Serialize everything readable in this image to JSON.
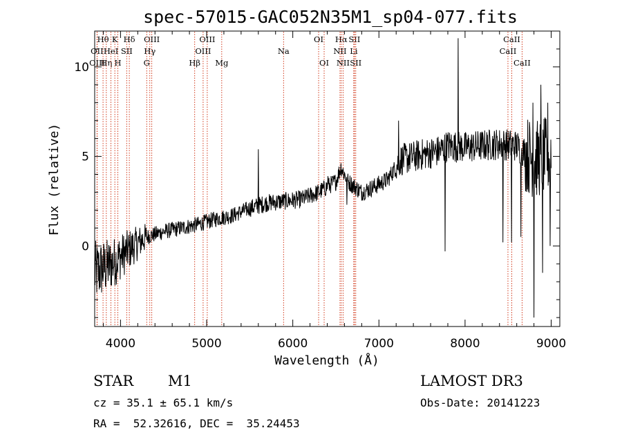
{
  "chart_data": {
    "type": "line",
    "title": "spec-57015-GAC052N35M1_sp04-077.fits",
    "xlabel": "Wavelength (Å)",
    "ylabel": "Flux (relative)",
    "xlim": [
      3700,
      9100
    ],
    "ylim": [
      -4.5,
      12
    ],
    "x_ticks": [
      4000,
      5000,
      6000,
      7000,
      8000,
      9000
    ],
    "x_tick_labels": [
      "4000",
      "5000",
      "6000",
      "7000",
      "8000",
      "9000"
    ],
    "y_ticks": [
      0,
      5,
      10
    ],
    "y_tick_labels": [
      "0",
      "5",
      "10"
    ],
    "spectrum_control_points": [
      [
        3700,
        -1.5
      ],
      [
        3900,
        -1.0
      ],
      [
        4100,
        -0.2
      ],
      [
        4300,
        0.5
      ],
      [
        4500,
        0.8
      ],
      [
        4700,
        1.0
      ],
      [
        4900,
        1.2
      ],
      [
        5100,
        1.5
      ],
      [
        5300,
        1.7
      ],
      [
        5500,
        2.1
      ],
      [
        5700,
        2.4
      ],
      [
        5900,
        2.5
      ],
      [
        6100,
        2.6
      ],
      [
        6300,
        3.0
      ],
      [
        6500,
        3.6
      ],
      [
        6560,
        4.4
      ],
      [
        6640,
        3.6
      ],
      [
        6800,
        3.0
      ],
      [
        6900,
        3.2
      ],
      [
        7100,
        3.7
      ],
      [
        7250,
        4.8
      ],
      [
        7500,
        5.1
      ],
      [
        7700,
        5.3
      ],
      [
        7800,
        5.6
      ],
      [
        8000,
        5.5
      ],
      [
        8200,
        5.6
      ],
      [
        8400,
        5.7
      ],
      [
        8600,
        5.6
      ],
      [
        8800,
        4.8
      ],
      [
        9000,
        5.1
      ]
    ],
    "spikes": [
      [
        5600,
        5.4
      ],
      [
        6410,
        3.9
      ],
      [
        6630,
        2.3
      ],
      [
        7230,
        7.0
      ],
      [
        7770,
        -0.3
      ],
      [
        7920,
        11.6
      ],
      [
        8440,
        0.2
      ],
      [
        8540,
        0.2
      ],
      [
        8650,
        0.5
      ],
      [
        8790,
        8.0
      ],
      [
        8800,
        -4.0
      ],
      [
        8880,
        9.0
      ],
      [
        8900,
        -1.5
      ],
      [
        8960,
        8.0
      ],
      [
        8990,
        0.0
      ]
    ],
    "spectral_lines": [
      {
        "name": "Hθ",
        "wavelength": 3797,
        "row": 1
      },
      {
        "name": "OII",
        "wavelength": 3727,
        "row": 2
      },
      {
        "name": "OIII",
        "wavelength": 3729,
        "row": 3
      },
      {
        "name": "K",
        "wavelength": 3934,
        "row": 1
      },
      {
        "name": "Hη",
        "wavelength": 3835,
        "row": 3
      },
      {
        "name": "H",
        "wavelength": 3969,
        "row": 3
      },
      {
        "name": "HeI",
        "wavelength": 3889,
        "row": 2
      },
      {
        "name": "SII",
        "wavelength": 4072,
        "row": 2
      },
      {
        "name": "Hδ",
        "wavelength": 4102,
        "row": 1
      },
      {
        "name": "OIII",
        "wavelength": 4363,
        "row": 1
      },
      {
        "name": "Hγ",
        "wavelength": 4340,
        "row": 2
      },
      {
        "name": "G",
        "wavelength": 4304,
        "row": 3
      },
      {
        "name": "OIII",
        "wavelength": 5007,
        "row": 1
      },
      {
        "name": "OIII",
        "wavelength": 4959,
        "row": 2
      },
      {
        "name": "Hβ",
        "wavelength": 4861,
        "row": 3
      },
      {
        "name": "Mg",
        "wavelength": 5175,
        "row": 3
      },
      {
        "name": "Na",
        "wavelength": 5893,
        "row": 2
      },
      {
        "name": "OI",
        "wavelength": 6300,
        "row": 1
      },
      {
        "name": "OI",
        "wavelength": 6364,
        "row": 3
      },
      {
        "name": "Hα",
        "wavelength": 6563,
        "row": 1
      },
      {
        "name": "SII",
        "wavelength": 6716,
        "row": 1
      },
      {
        "name": "NII",
        "wavelength": 6548,
        "row": 2
      },
      {
        "name": "Li",
        "wavelength": 6708,
        "row": 2
      },
      {
        "name": "NII",
        "wavelength": 6584,
        "row": 3
      },
      {
        "name": "SII",
        "wavelength": 6731,
        "row": 3
      },
      {
        "name": "CaII",
        "wavelength": 8542,
        "row": 1
      },
      {
        "name": "CaII",
        "wavelength": 8498,
        "row": 2
      },
      {
        "name": "CaII",
        "wavelength": 8662,
        "row": 3
      }
    ]
  },
  "info": {
    "class": "STAR",
    "subclass": "M1",
    "survey": "LAMOST DR3",
    "cz_line": "cz = 35.1 ± 65.1 km/s",
    "obs_date_line": "Obs-Date: 20141223",
    "radec_line": "RA =  52.32616, DEC =  35.24453"
  },
  "colors": {
    "spectrum": "#000000",
    "line_marker": "#cc2200"
  }
}
